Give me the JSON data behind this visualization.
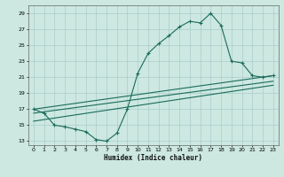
{
  "xlabel": "Humidex (Indice chaleur)",
  "bg_color": "#cce8e0",
  "grid_color": "#aacccc",
  "line_color": "#1a6b5a",
  "xlim": [
    -0.5,
    23.5
  ],
  "ylim": [
    12.5,
    30
  ],
  "xticks": [
    0,
    1,
    2,
    3,
    4,
    5,
    6,
    7,
    8,
    9,
    10,
    11,
    12,
    13,
    14,
    15,
    16,
    17,
    18,
    19,
    20,
    21,
    22,
    23
  ],
  "yticks": [
    13,
    15,
    17,
    19,
    21,
    23,
    25,
    27,
    29
  ],
  "main_curve_x": [
    0,
    1,
    2,
    3,
    4,
    5,
    6,
    7,
    8,
    9,
    10,
    11,
    12,
    13,
    14,
    15,
    16,
    17,
    18,
    19,
    20,
    21,
    22,
    23
  ],
  "main_curve_y": [
    17,
    16.5,
    15,
    14.8,
    14.5,
    14.2,
    13.2,
    13,
    14,
    17,
    21.5,
    24,
    25.2,
    26.2,
    27.3,
    28,
    27.8,
    29,
    27.5,
    23,
    22.8,
    21.2,
    21,
    21.2
  ],
  "line1_x": [
    0,
    23
  ],
  "line1_y": [
    17.0,
    21.2
  ],
  "line2_x": [
    0,
    23
  ],
  "line2_y": [
    16.5,
    20.5
  ],
  "line3_x": [
    0,
    23
  ],
  "line3_y": [
    15.5,
    20.0
  ]
}
